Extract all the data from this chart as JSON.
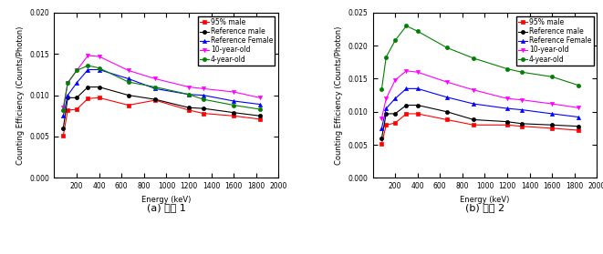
{
  "energy": [
    80,
    120,
    200,
    300,
    400,
    662,
    900,
    1200,
    1330,
    1600,
    1836
  ],
  "chart_a": {
    "caption": "(a) 조건 1",
    "ylabel": "Counting Efficiency (Counts/Photon)",
    "xlabel": "Energy (keV)",
    "ylim": [
      0.0,
      0.02
    ],
    "yticks": [
      0.0,
      0.005,
      0.01,
      0.015,
      0.02
    ],
    "xlim": [
      0,
      2000
    ],
    "xticks": [
      200,
      400,
      600,
      800,
      1000,
      1200,
      1400,
      1600,
      1800,
      2000
    ],
    "series": {
      "95% male": {
        "color": "#ff0000",
        "marker": "s",
        "data": [
          0.0051,
          0.0082,
          0.0083,
          0.0096,
          0.0097,
          0.0088,
          0.0094,
          0.0082,
          0.0078,
          0.0075,
          0.0071
        ]
      },
      "Reference male": {
        "color": "#000000",
        "marker": "o",
        "data": [
          0.006,
          0.0097,
          0.0097,
          0.011,
          0.011,
          0.01,
          0.0095,
          0.0085,
          0.0084,
          0.0079,
          0.0075
        ]
      },
      "Reference Female": {
        "color": "#0000ff",
        "marker": "^",
        "data": [
          0.0075,
          0.01,
          0.0115,
          0.0131,
          0.0131,
          0.012,
          0.0108,
          0.0101,
          0.01,
          0.0093,
          0.0089
        ]
      },
      "10-year-old": {
        "color": "#ff00ff",
        "marker": "v",
        "data": [
          0.0085,
          0.0115,
          0.013,
          0.0148,
          0.0147,
          0.013,
          0.012,
          0.011,
          0.0108,
          0.0104,
          0.0097
        ]
      },
      "4-year-old": {
        "color": "#008000",
        "marker": "o",
        "data": [
          0.0082,
          0.0115,
          0.013,
          0.0136,
          0.0133,
          0.0116,
          0.011,
          0.0101,
          0.0095,
          0.0088,
          0.0083
        ]
      }
    }
  },
  "chart_b": {
    "caption": "(b) 조건 2",
    "ylabel": "Counting Efficiency (Counts/Photon)",
    "xlabel": "Energy (keV)",
    "ylim": [
      0.0,
      0.025
    ],
    "yticks": [
      0.0,
      0.005,
      0.01,
      0.015,
      0.02,
      0.025
    ],
    "xlim": [
      0,
      2000
    ],
    "xticks": [
      200,
      400,
      600,
      800,
      1000,
      1200,
      1400,
      1600,
      1800,
      2000
    ],
    "series": {
      "95% male": {
        "color": "#ff0000",
        "marker": "s",
        "data": [
          0.0051,
          0.008,
          0.0083,
          0.0097,
          0.0097,
          0.0088,
          0.008,
          0.008,
          0.0078,
          0.0075,
          0.0072
        ]
      },
      "Reference male": {
        "color": "#000000",
        "marker": "o",
        "data": [
          0.006,
          0.0097,
          0.0097,
          0.011,
          0.011,
          0.01,
          0.0088,
          0.0085,
          0.0082,
          0.008,
          0.0078
        ]
      },
      "Reference Female": {
        "color": "#0000ff",
        "marker": "^",
        "data": [
          0.0075,
          0.0105,
          0.012,
          0.0135,
          0.0135,
          0.0122,
          0.0112,
          0.0105,
          0.0103,
          0.0097,
          0.0092
        ]
      },
      "10-year-old": {
        "color": "#ff00ff",
        "marker": "v",
        "data": [
          0.009,
          0.012,
          0.0148,
          0.0162,
          0.016,
          0.0145,
          0.0133,
          0.012,
          0.0118,
          0.0112,
          0.0106
        ]
      },
      "4-year-old": {
        "color": "#008000",
        "marker": "o",
        "data": [
          0.0134,
          0.0183,
          0.0208,
          0.023,
          0.0222,
          0.0197,
          0.0181,
          0.0165,
          0.016,
          0.0153,
          0.014
        ]
      }
    }
  },
  "legend_order": [
    "95% male",
    "Reference male",
    "Reference Female",
    "10-year-old",
    "4-year-old"
  ],
  "markersize": 3,
  "linewidth": 0.8,
  "fontsize_label": 6,
  "fontsize_tick": 5.5,
  "fontsize_legend": 5.5,
  "fontsize_caption": 8
}
